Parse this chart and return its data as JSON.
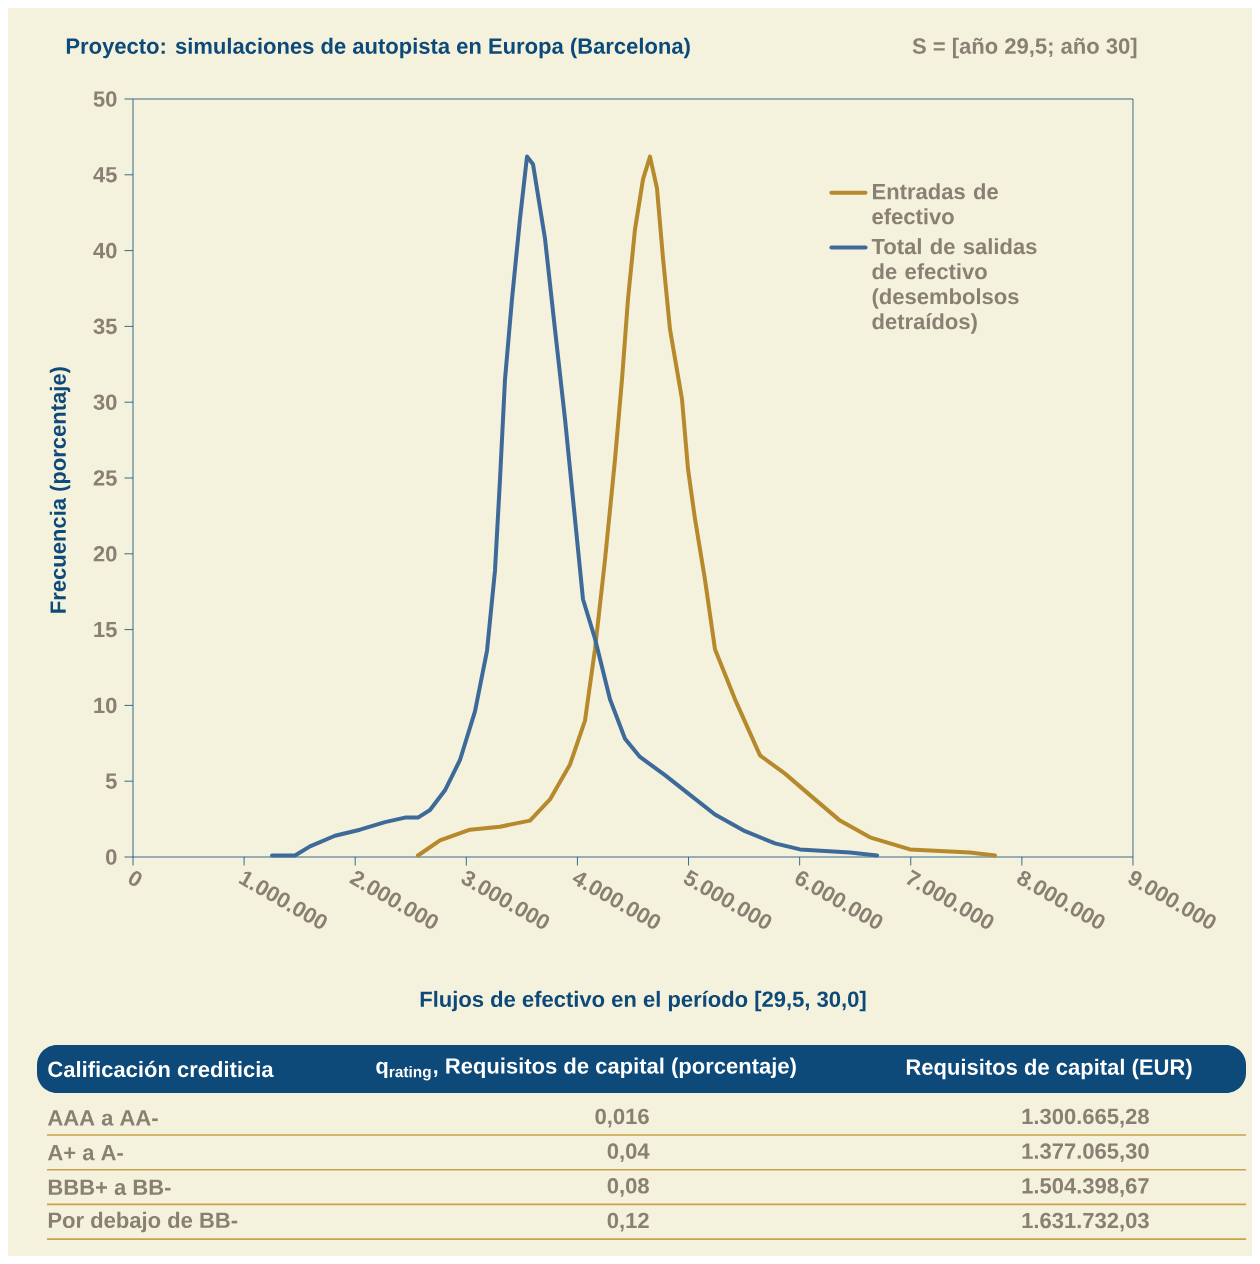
{
  "chart_data": {
    "type": "line",
    "title": "Proyecto: simulaciones de autopista en Europa (Barcelona)",
    "subtitle": "S = [año 29,5; año 30]",
    "xlabel": "Flujos de efectivo en el período [29,5, 30,0]",
    "ylabel": "Frecuencia (porcentaje)",
    "xlim": [
      0,
      9000000
    ],
    "xticks": [
      0,
      {
        "value": 1000000,
        "label": "1.000.000"
      },
      {
        "value": 2000000,
        "label": "2.000.000"
      },
      {
        "value": 3000000,
        "label": "3.000.000"
      },
      {
        "value": 4000000,
        "label": "4.000.000"
      },
      {
        "value": 5000000,
        "label": "5.000.000"
      },
      {
        "value": 6000000,
        "label": "6.000.000"
      },
      {
        "value": 7000000,
        "label": "7.000.000"
      },
      {
        "value": 8000000,
        "label": "8.000.000"
      },
      {
        "value": 9000000,
        "label": "9.000.000"
      }
    ],
    "ylim": [
      0,
      50
    ],
    "yticks": [
      0,
      5,
      10,
      15,
      20,
      25,
      30,
      35,
      40,
      45,
      50
    ],
    "legend": "top right",
    "line_style": "solid",
    "series": [
      {
        "name": "Entradas de efectivo",
        "color": "#b5892c",
        "x": [
          2565000,
          2763000,
          3033000,
          3303000,
          3573000,
          3753000,
          3933000,
          4068000,
          4158000,
          4248000,
          4338000,
          4401000,
          4455000,
          4518000,
          4590000,
          4653000,
          4716000,
          4770000,
          4833000,
          4941000,
          4995000,
          5058000,
          5148000,
          5238000,
          5418000,
          5643000,
          5868000,
          6138000,
          6363000,
          6633000,
          6993000,
          7533000,
          7758000
        ],
        "values": [
          0.1,
          1.1,
          1.8,
          2.0,
          2.4,
          3.8,
          6.1,
          9.0,
          13.7,
          19.6,
          26.2,
          31.5,
          36.8,
          41.4,
          44.7,
          46.2,
          44.1,
          39.5,
          34.8,
          30.2,
          25.6,
          22.3,
          18.3,
          13.7,
          10.4,
          6.7,
          5.5,
          3.8,
          2.4,
          1.3,
          0.5,
          0.3,
          0.1
        ]
      },
      {
        "name": "Total de salidas de efectivo (desembolsos detraídos)",
        "color": "#3d6a99",
        "x": [
          1251000,
          1458000,
          1593000,
          1818000,
          2043000,
          2268000,
          2448000,
          2565000,
          2673000,
          2808000,
          2943000,
          3078000,
          3186000,
          3258000,
          3303000,
          3348000,
          3411000,
          3483000,
          3546000,
          3600000,
          3708000,
          3798000,
          3888000,
          3978000,
          4050000,
          4158000,
          4293000,
          4428000,
          4563000,
          4788000,
          5013000,
          5238000,
          5508000,
          5778000,
          6003000,
          6453000,
          6697000
        ],
        "values": [
          0.1,
          0.1,
          0.7,
          1.4,
          1.8,
          2.3,
          2.6,
          2.6,
          3.1,
          4.4,
          6.4,
          9.6,
          13.6,
          18.9,
          24.9,
          31.5,
          36.8,
          42.1,
          46.2,
          45.7,
          40.8,
          34.8,
          28.9,
          22.3,
          17.0,
          14.4,
          10.4,
          7.8,
          6.6,
          5.4,
          4.1,
          2.8,
          1.7,
          0.9,
          0.5,
          0.3,
          0.1
        ]
      }
    ],
    "annotations": [
      "Calificación crediticia",
      "q$_{rating}$, Requisitos de capital (porcentaje)",
      "Requisitos de capital (EUR)",
      "AAA a AA-",
      "0,016",
      "1.300.665,28",
      "A+ a A-",
      "0,04",
      "1.377.065,30",
      "BBB+ a BB-",
      "0,08",
      "1.504.398,67",
      "Por debajo de BB-",
      "0,12",
      "1.631.732,03"
    ]
  }
}
